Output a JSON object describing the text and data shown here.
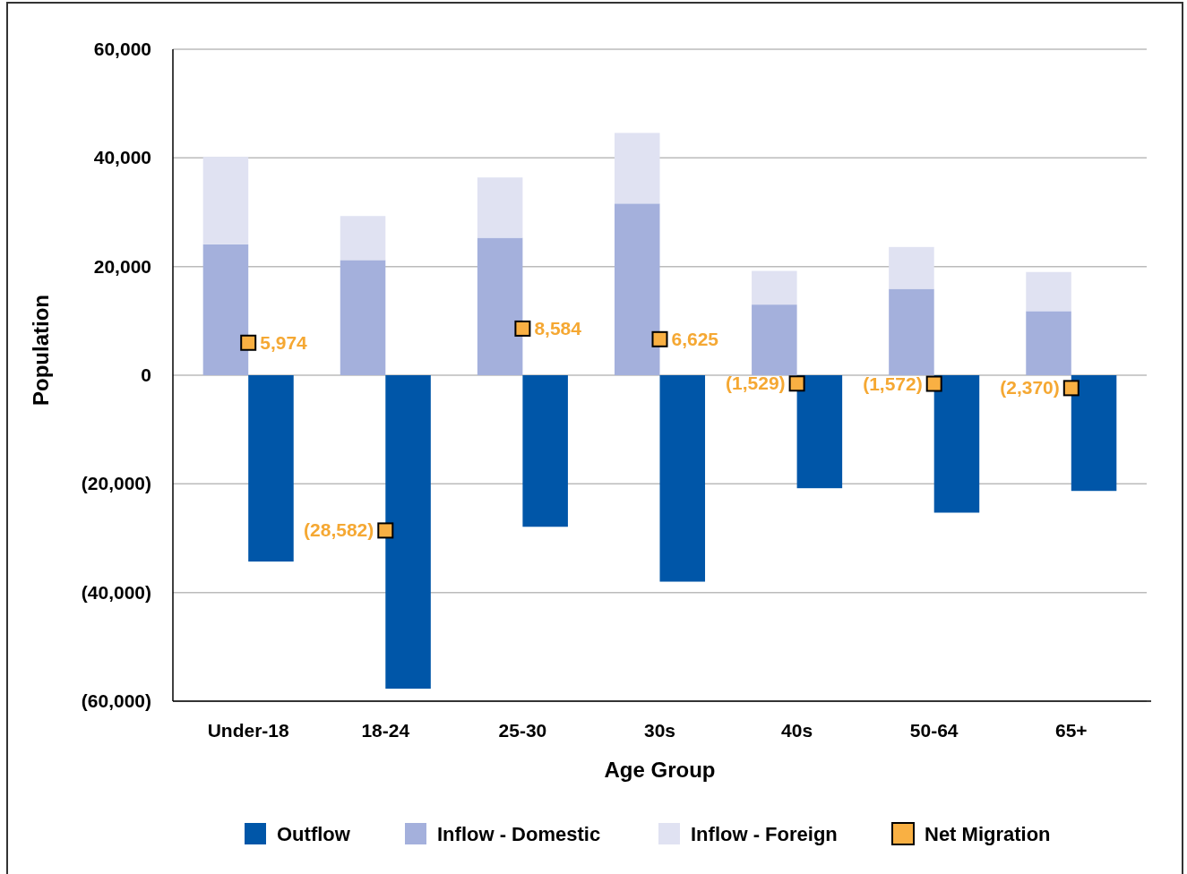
{
  "chart_data": {
    "type": "bar",
    "xlabel": "Age Group",
    "ylabel": "Population",
    "categories": [
      "Under-18",
      "18-24",
      "25-30",
      "30s",
      "40s",
      "50-64",
      "65+"
    ],
    "stacked": true,
    "series": [
      {
        "name": "Outflow",
        "color": "#0056a8",
        "values": [
          -34300,
          -57700,
          -27900,
          -38000,
          -20800,
          -25300,
          -21300
        ]
      },
      {
        "name": "Inflow - Domestic",
        "color": "#a4b0dc",
        "values": [
          24100,
          21200,
          25300,
          31600,
          13000,
          15900,
          11800
        ]
      },
      {
        "name": "Inflow - Foreign",
        "color": "#e0e2f2",
        "values": [
          16100,
          8100,
          11100,
          13000,
          6200,
          7700,
          7200
        ]
      },
      {
        "name": "Net Migration",
        "type": "scatter",
        "marker": "square",
        "color": "#f9b043",
        "x": [
          "Under-18",
          "18-24",
          "25-30",
          "30s",
          "40s",
          "50-64",
          "65+"
        ],
        "values": [
          5974,
          -28582,
          8584,
          6625,
          -1529,
          -1572,
          -2370
        ],
        "value_labels": [
          "5,974",
          "(28,582)",
          "8,584",
          "6,625",
          "(1,529)",
          "(1,572)",
          "(2,370)"
        ]
      }
    ],
    "ylim": [
      -60000,
      60000
    ],
    "yticks": [
      {
        "value": -60000,
        "label": "(60,000)"
      },
      {
        "value": -40000,
        "label": "(40,000)"
      },
      {
        "value": -20000,
        "label": "(20,000)"
      },
      0,
      {
        "value": 20000,
        "label": "20,000"
      },
      {
        "value": 40000,
        "label": "40,000"
      },
      {
        "value": 60000,
        "label": "60,000"
      }
    ],
    "grid": "y",
    "legend": "bottom"
  }
}
